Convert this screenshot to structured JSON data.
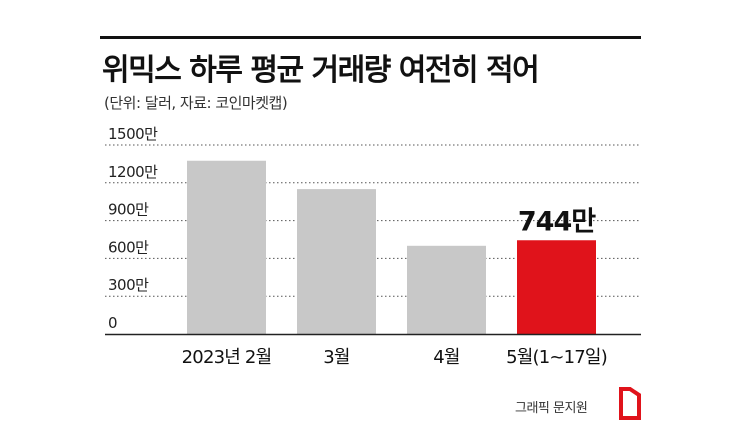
{
  "title": "위믹스 하루 평균 거래량 여전히 적어",
  "subtitle": "(단위: 달러, 자료: 코인마켓캡)",
  "credit": "그래픽 문지원",
  "colors": {
    "bar_default": "#c8c8c8",
    "bar_highlight": "#e0131b",
    "gridline": "#555555",
    "axis": "#222222"
  },
  "chart_data": {
    "type": "bar",
    "categories": [
      "2023년 2월",
      "3월",
      "4월",
      "5월(1~17일)"
    ],
    "values": [
      13750000,
      11500000,
      7000000,
      7440000
    ],
    "highlight_index": 3,
    "data_labels": [
      "",
      "",
      "",
      "744만"
    ],
    "yticks": [
      0,
      3000000,
      6000000,
      9000000,
      12000000,
      15000000
    ],
    "ytick_labels": [
      "0",
      "300만",
      "600만",
      "900만",
      "1200만",
      "1500만"
    ],
    "ylim": [
      0,
      15000000
    ],
    "grid": true,
    "title": "위믹스 하루 평균 거래량 여전히 적어",
    "xlabel": "",
    "ylabel": ""
  }
}
